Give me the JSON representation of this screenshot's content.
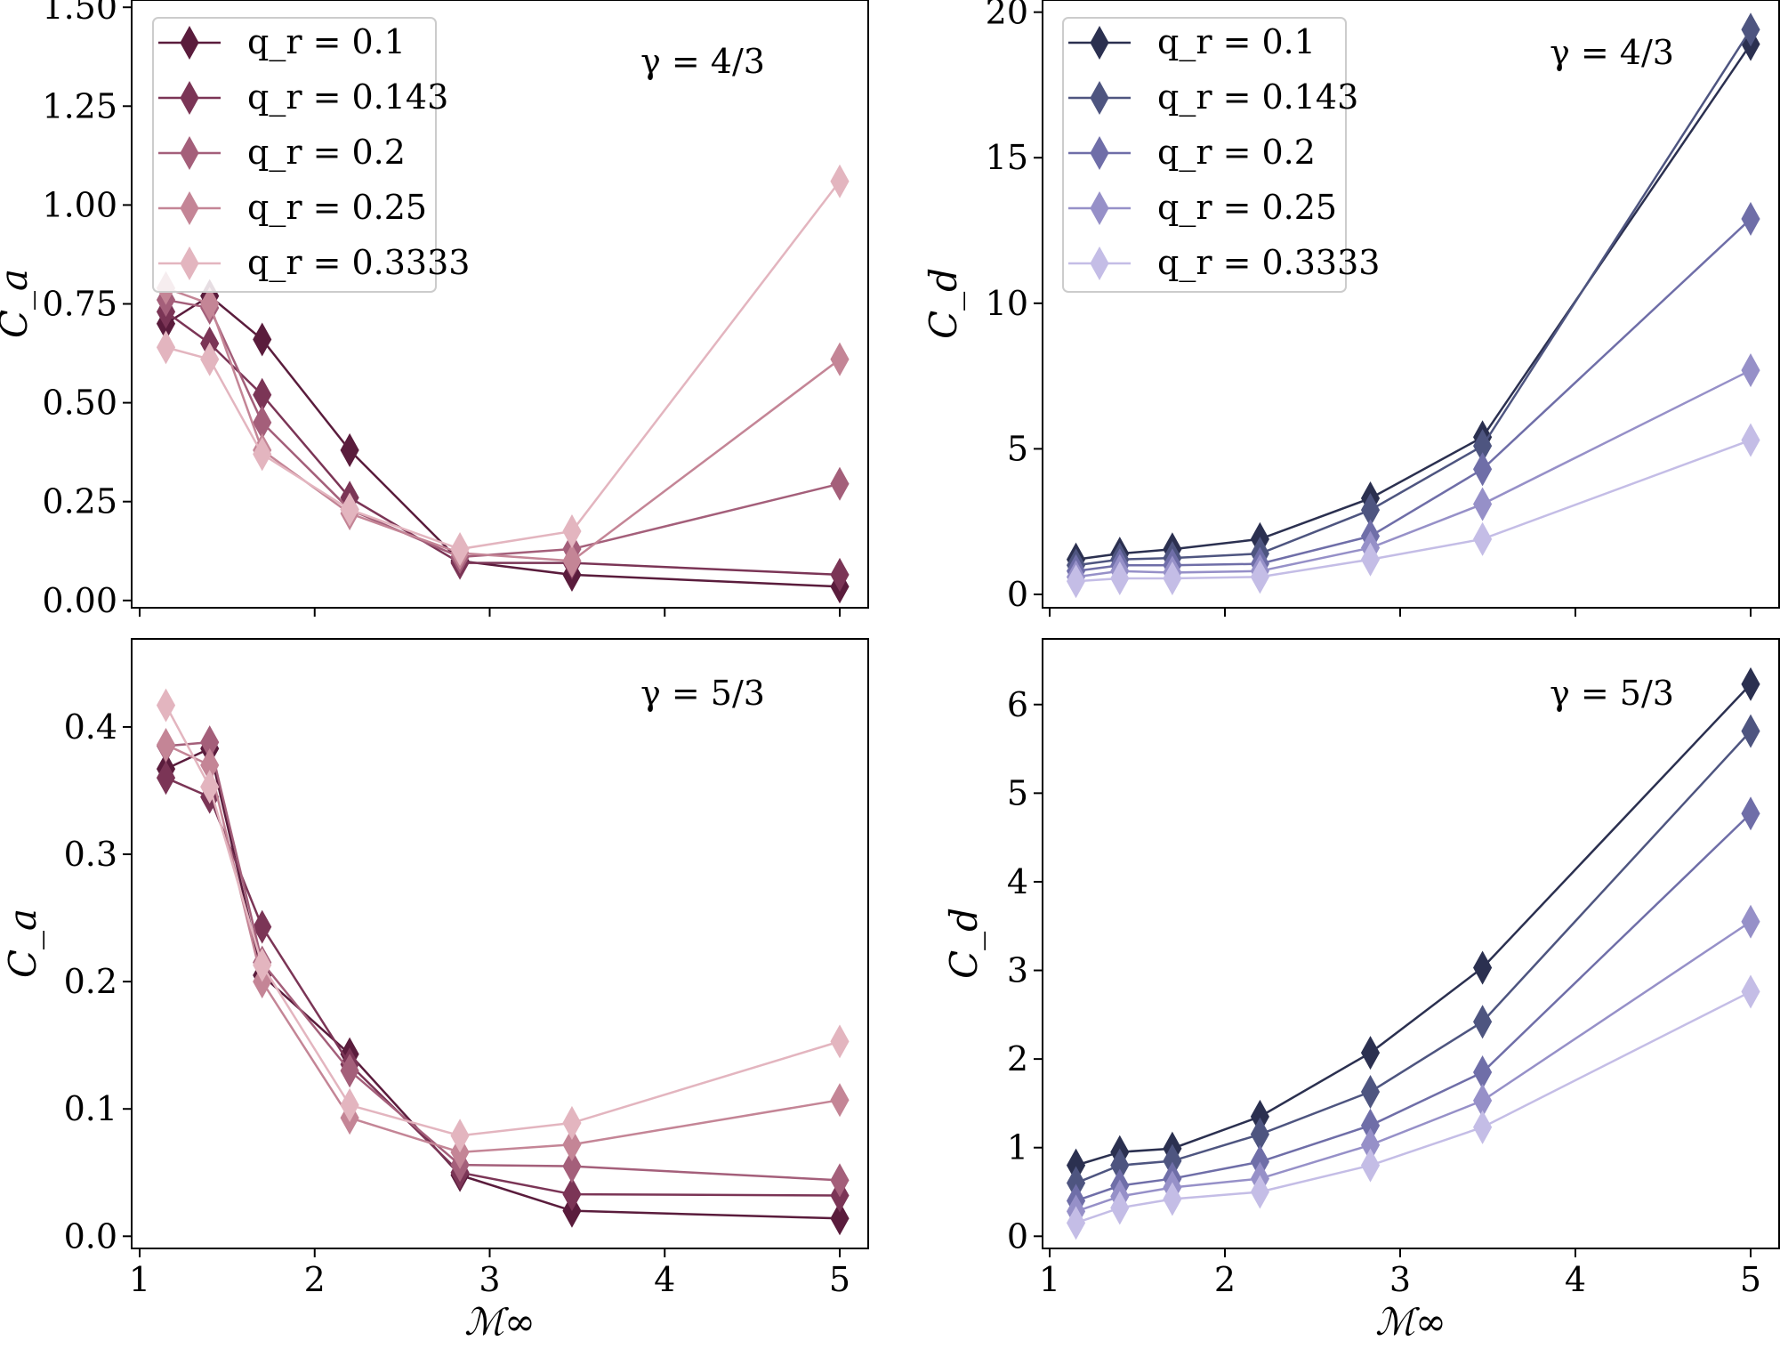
{
  "figure": {
    "xlabel": "ℳ∞",
    "legend_labels": [
      "q_r = 0.1",
      "q_r = 0.143",
      "q_r = 0.2",
      "q_r = 0.25",
      "q_r = 0.3333"
    ]
  },
  "chart_data": [
    {
      "type": "line",
      "panel": "top-left",
      "title": "γ = 4/3",
      "xlabel": "",
      "ylabel": "C_a",
      "xlim": [
        1,
        5
      ],
      "ylim": [
        0,
        1.5
      ],
      "xticks": [
        1,
        2,
        3,
        4,
        5
      ],
      "yticks": [
        0.0,
        0.25,
        0.5,
        0.75,
        1.0,
        1.25,
        1.5
      ],
      "ytick_labels": [
        "0.00",
        "0.25",
        "0.50",
        "0.75",
        "1.00",
        "1.25",
        "1.50"
      ],
      "x": [
        1.15,
        1.4,
        1.7,
        2.2,
        2.83,
        3.47,
        5.0
      ],
      "legend": "top-left",
      "series": [
        {
          "name": "q_r = 0.1",
          "color": "#5a1c3c",
          "values": [
            0.7,
            0.77,
            0.66,
            0.38,
            0.1,
            0.065,
            0.035
          ]
        },
        {
          "name": "q_r = 0.143",
          "color": "#7b3556",
          "values": [
            0.73,
            0.65,
            0.52,
            0.26,
            0.095,
            0.095,
            0.065
          ]
        },
        {
          "name": "q_r = 0.2",
          "color": "#a45f7a",
          "values": [
            0.76,
            0.74,
            0.45,
            0.23,
            0.11,
            0.13,
            0.295
          ]
        },
        {
          "name": "q_r = 0.25",
          "color": "#c48596",
          "values": [
            0.79,
            0.75,
            0.38,
            0.22,
            0.12,
            0.1,
            0.61
          ]
        },
        {
          "name": "q_r = 0.3333",
          "color": "#e3b5bf",
          "values": [
            0.64,
            0.61,
            0.37,
            0.23,
            0.13,
            0.175,
            1.06
          ]
        }
      ]
    },
    {
      "type": "line",
      "panel": "top-right",
      "title": "γ = 4/3",
      "xlabel": "",
      "ylabel": "C_d",
      "xlim": [
        1,
        5
      ],
      "ylim": [
        0,
        20
      ],
      "xticks": [
        1,
        2,
        3,
        4,
        5
      ],
      "yticks": [
        0,
        5,
        10,
        15,
        20
      ],
      "ytick_labels": [
        "0",
        "5",
        "10",
        "15",
        "20"
      ],
      "x": [
        1.15,
        1.4,
        1.7,
        2.2,
        2.83,
        3.47,
        5.0
      ],
      "legend": "top-left",
      "series": [
        {
          "name": "q_r = 0.1",
          "color": "#2b3050",
          "values": [
            1.2,
            1.4,
            1.55,
            1.9,
            3.3,
            5.4,
            18.9
          ]
        },
        {
          "name": "q_r = 0.143",
          "color": "#4e5580",
          "values": [
            1.0,
            1.2,
            1.25,
            1.4,
            2.9,
            5.1,
            19.4
          ]
        },
        {
          "name": "q_r = 0.2",
          "color": "#6f6ea8",
          "values": [
            0.8,
            1.0,
            1.0,
            1.05,
            2.0,
            4.3,
            12.9
          ]
        },
        {
          "name": "q_r = 0.25",
          "color": "#9690c8",
          "values": [
            0.6,
            0.8,
            0.75,
            0.8,
            1.6,
            3.1,
            7.7
          ]
        },
        {
          "name": "q_r = 0.3333",
          "color": "#c4bde6",
          "values": [
            0.45,
            0.55,
            0.55,
            0.6,
            1.2,
            1.9,
            5.3
          ]
        }
      ]
    },
    {
      "type": "line",
      "panel": "bottom-left",
      "title": "γ = 5/3",
      "xlabel": "ℳ∞",
      "ylabel": "C_a",
      "xlim": [
        1,
        5
      ],
      "ylim": [
        0,
        0.45
      ],
      "xticks": [
        1,
        2,
        3,
        4,
        5
      ],
      "yticks": [
        0.0,
        0.1,
        0.2,
        0.3,
        0.4
      ],
      "ytick_labels": [
        "0.0",
        "0.1",
        "0.2",
        "0.3",
        "0.4"
      ],
      "x": [
        1.15,
        1.4,
        1.7,
        2.2,
        2.83,
        3.47,
        5.0
      ],
      "series": [
        {
          "name": "q_r = 0.1",
          "color": "#5a1c3c",
          "values": [
            0.367,
            0.383,
            0.205,
            0.143,
            0.048,
            0.02,
            0.014
          ]
        },
        {
          "name": "q_r = 0.143",
          "color": "#7b3556",
          "values": [
            0.36,
            0.345,
            0.243,
            0.135,
            0.05,
            0.033,
            0.032
          ]
        },
        {
          "name": "q_r = 0.2",
          "color": "#a45f7a",
          "values": [
            0.385,
            0.388,
            0.215,
            0.13,
            0.056,
            0.055,
            0.044
          ]
        },
        {
          "name": "q_r = 0.25",
          "color": "#c48596",
          "values": [
            0.386,
            0.37,
            0.2,
            0.093,
            0.066,
            0.072,
            0.107
          ]
        },
        {
          "name": "q_r = 0.3333",
          "color": "#e3b5bf",
          "values": [
            0.417,
            0.353,
            0.213,
            0.103,
            0.079,
            0.089,
            0.153
          ]
        }
      ]
    },
    {
      "type": "line",
      "panel": "bottom-right",
      "title": "γ = 5/3",
      "xlabel": "ℳ∞",
      "ylabel": "C_d",
      "xlim": [
        1,
        5
      ],
      "ylim": [
        0,
        6.5
      ],
      "xticks": [
        1,
        2,
        3,
        4,
        5
      ],
      "yticks": [
        0,
        1,
        2,
        3,
        4,
        5,
        6
      ],
      "ytick_labels": [
        "0",
        "1",
        "2",
        "3",
        "4",
        "5",
        "6"
      ],
      "x": [
        1.15,
        1.4,
        1.7,
        2.2,
        2.83,
        3.47,
        5.0
      ],
      "series": [
        {
          "name": "q_r = 0.1",
          "color": "#2b3050",
          "values": [
            0.8,
            0.95,
            0.99,
            1.35,
            2.07,
            3.03,
            6.23
          ]
        },
        {
          "name": "q_r = 0.143",
          "color": "#4e5580",
          "values": [
            0.6,
            0.8,
            0.85,
            1.15,
            1.63,
            2.42,
            5.7
          ]
        },
        {
          "name": "q_r = 0.2",
          "color": "#6f6ea8",
          "values": [
            0.4,
            0.57,
            0.65,
            0.84,
            1.25,
            1.85,
            4.77
          ]
        },
        {
          "name": "q_r = 0.25",
          "color": "#9690c8",
          "values": [
            0.28,
            0.45,
            0.55,
            0.65,
            1.03,
            1.53,
            3.55
          ]
        },
        {
          "name": "q_r = 0.3333",
          "color": "#c4bde6",
          "values": [
            0.15,
            0.32,
            0.42,
            0.5,
            0.8,
            1.23,
            2.76
          ]
        }
      ]
    }
  ]
}
